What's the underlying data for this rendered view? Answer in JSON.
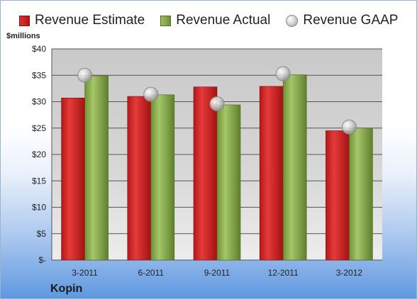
{
  "company": "Kopin",
  "unit_label": "$millions",
  "legend": {
    "estimate": "Revenue Estimate",
    "actual": "Revenue Actual",
    "gaap": "Revenue GAAP"
  },
  "colors": {
    "estimate": "#c82020",
    "actual": "#86a848",
    "gaap": "#bdbdbd",
    "plot_background": "#d4d4d4"
  },
  "chart_data": {
    "type": "bar",
    "title": "",
    "xlabel": "",
    "ylabel": "$millions",
    "categories": [
      "3-2011",
      "6-2011",
      "9-2011",
      "12-2011",
      "3-2012"
    ],
    "series": [
      {
        "name": "Revenue Estimate",
        "kind": "bar",
        "values": [
          30.7,
          31.0,
          32.8,
          32.9,
          24.5
        ]
      },
      {
        "name": "Revenue Actual",
        "kind": "bar",
        "values": [
          34.9,
          31.3,
          29.4,
          35.1,
          25.0
        ]
      },
      {
        "name": "Revenue GAAP",
        "kind": "marker",
        "values": [
          35.0,
          31.4,
          29.6,
          35.3,
          25.2
        ]
      }
    ],
    "ylim": [
      0,
      40
    ],
    "yticks": [
      0,
      5,
      10,
      15,
      20,
      25,
      30,
      35,
      40
    ],
    "ytick_labels": [
      "$-",
      "$5",
      "$10",
      "$15",
      "$20",
      "$25",
      "$30",
      "$35",
      "$40"
    ],
    "grid": true,
    "legend_position": "top"
  }
}
